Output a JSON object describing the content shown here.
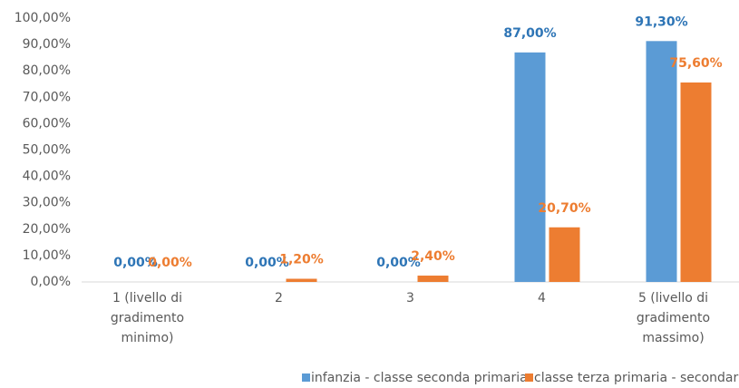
{
  "chart_data": {
    "type": "bar",
    "categories": [
      "1 (livello di gradimento minimo)",
      "2",
      "3",
      "4",
      "5 (livello di gradimento massimo)"
    ],
    "series": [
      {
        "name": "infanzia - classe seconda primaria",
        "color": "#5b9bd5",
        "label_color": "#2e75b6",
        "values": [
          0,
          0,
          0,
          87,
          91.3
        ],
        "value_labels": [
          "0,00%",
          "0,00%",
          "0,00%",
          "87,00%",
          "91,30%"
        ]
      },
      {
        "name": "classe terza primaria - secondaria",
        "color": "#ed7d31",
        "label_color": "#ed7d31",
        "values": [
          0,
          1.2,
          2.4,
          20.7,
          75.6
        ],
        "value_labels": [
          "0,00%",
          "1,20%",
          "2,40%",
          "20,70%",
          "75,60%"
        ]
      }
    ],
    "ylim": [
      0,
      100
    ],
    "yticks": [
      {
        "value": 0,
        "label": "0,00%"
      },
      {
        "value": 10,
        "label": "10,00%"
      },
      {
        "value": 20,
        "label": "20,00%"
      },
      {
        "value": 30,
        "label": "30,00%"
      },
      {
        "value": 40,
        "label": "40,00%"
      },
      {
        "value": 50,
        "label": "50,00%"
      },
      {
        "value": 60,
        "label": "60,00%"
      },
      {
        "value": 70,
        "label": "70,00%"
      },
      {
        "value": 80,
        "label": "80,00%"
      },
      {
        "value": 90,
        "label": "90,00%"
      },
      {
        "value": 100,
        "label": "100,00%"
      }
    ],
    "grid": false,
    "legend": "bottom"
  }
}
